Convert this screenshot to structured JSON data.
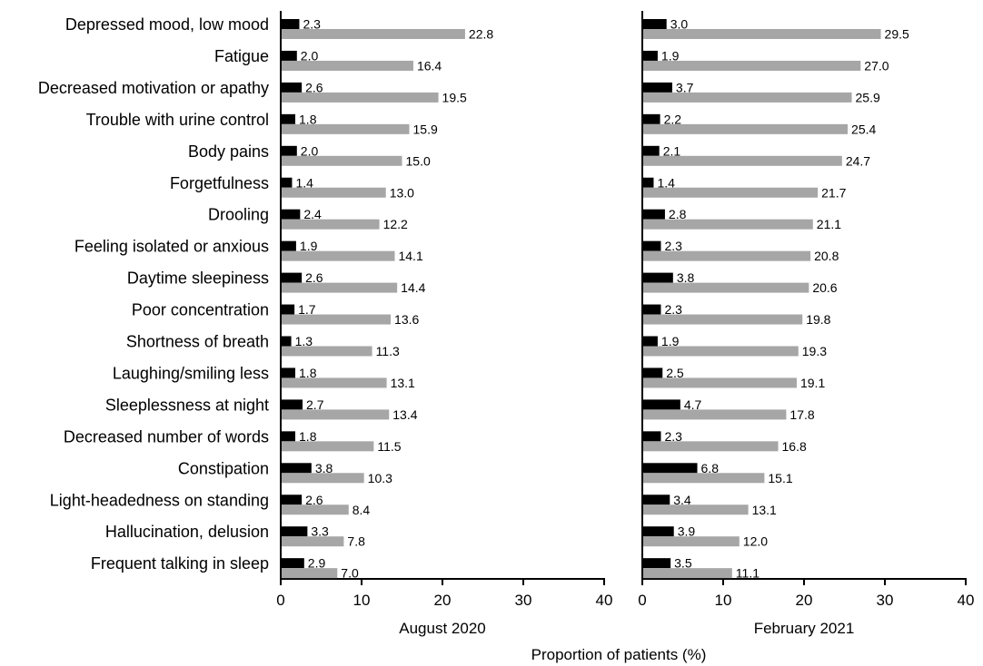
{
  "chart_data": {
    "type": "bar",
    "orientation": "horizontal",
    "xlabel": "Proportion of patients (%)",
    "xlim": [
      0,
      40
    ],
    "xticks": [
      "0",
      "10",
      "20",
      "30",
      "40"
    ],
    "colors": {
      "series_1": "#000000",
      "series_2": "#a6a6a7"
    },
    "categories": [
      "Depressed mood, low mood",
      "Fatigue",
      "Decreased motivation or apathy",
      "Trouble with urine control",
      "Body pains",
      "Forgetfulness",
      "Drooling",
      "Feeling isolated or anxious",
      "Daytime sleepiness",
      "Poor concentration",
      "Shortness of breath",
      "Laughing/smiling less",
      "Sleeplessness at night",
      "Decreased number of words",
      "Constipation",
      "Light-headedness on standing",
      "Hallucination, delusion",
      "Frequent talking in sleep"
    ],
    "panels": [
      {
        "subtitle": "August 2020",
        "series": [
          {
            "values": [
              2.3,
              2.0,
              2.6,
              1.8,
              2.0,
              1.4,
              2.4,
              1.9,
              2.6,
              1.7,
              1.3,
              1.8,
              2.7,
              1.8,
              3.8,
              2.6,
              3.3,
              2.9
            ]
          },
          {
            "values": [
              22.8,
              16.4,
              19.5,
              15.9,
              15.0,
              13.0,
              12.2,
              14.1,
              14.4,
              13.6,
              11.3,
              13.1,
              13.4,
              11.5,
              10.3,
              8.4,
              7.8,
              7.0
            ]
          }
        ]
      },
      {
        "subtitle": "February 2021",
        "series": [
          {
            "values": [
              3.0,
              1.9,
              3.7,
              2.2,
              2.1,
              1.4,
              2.8,
              2.3,
              3.8,
              2.3,
              1.9,
              2.5,
              4.7,
              2.3,
              6.8,
              3.4,
              3.9,
              3.5
            ]
          },
          {
            "values": [
              29.5,
              27.0,
              25.9,
              25.4,
              24.7,
              21.7,
              21.1,
              20.8,
              20.6,
              19.8,
              19.3,
              19.1,
              17.8,
              16.8,
              15.1,
              13.1,
              12.0,
              11.1
            ]
          }
        ]
      }
    ]
  }
}
